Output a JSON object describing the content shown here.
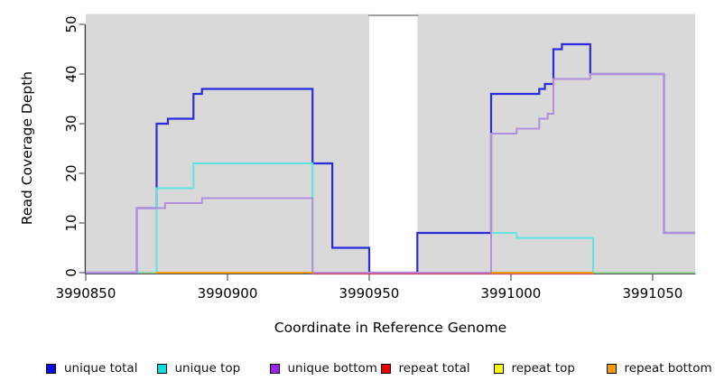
{
  "chart_data": {
    "type": "line",
    "style": "step",
    "title": "",
    "xlabel": "Coordinate in Reference Genome",
    "ylabel": "Read Coverage Depth",
    "xlim": [
      3990850,
      3991065
    ],
    "ylim": [
      0,
      50
    ],
    "xticks": [
      3990850,
      3990900,
      3990950,
      3991000,
      3991050
    ],
    "yticks": [
      0,
      10,
      20,
      30,
      40,
      50
    ],
    "grid": "off",
    "legend_position": "bottom",
    "plot_background": "#d9d9d9",
    "coverage_gap": {
      "x_start": 3990950,
      "x_end": 3990967
    },
    "series": [
      {
        "name": "unique-total",
        "legend_label": "unique total",
        "color": "#0a0aee",
        "line_color": "#2b2bdd",
        "width": 2.2,
        "dy": 0,
        "segments": [
          [
            [
              3990850,
              0
            ],
            [
              3990868,
              13
            ],
            [
              3990875,
              30
            ],
            [
              3990879,
              31
            ],
            [
              3990888,
              36
            ],
            [
              3990891,
              37
            ],
            [
              3990930,
              22
            ],
            [
              3990937,
              5
            ],
            [
              3990950,
              0
            ],
            [
              3990967,
              8
            ],
            [
              3990993,
              36
            ],
            [
              3991010,
              37
            ],
            [
              3991012,
              38
            ],
            [
              3991015,
              45
            ],
            [
              3991018,
              46
            ],
            [
              3991028,
              40
            ],
            [
              3991054,
              8
            ],
            [
              3991065,
              8
            ]
          ]
        ]
      },
      {
        "name": "unique-top",
        "legend_label": "unique top",
        "color": "#00e0e0",
        "line_color": "#5fe3e3",
        "width": 2,
        "dy": 0,
        "segments": [
          [
            [
              3990850,
              0
            ],
            [
              3990875,
              17
            ],
            [
              3990888,
              22
            ],
            [
              3990930,
              0
            ],
            [
              3990993,
              8
            ],
            [
              3991002,
              7
            ],
            [
              3991029,
              0
            ],
            [
              3991065,
              0
            ]
          ]
        ]
      },
      {
        "name": "unique-bottom",
        "legend_label": "unique bottom",
        "color": "#a020f0",
        "line_color": "#b48ede",
        "width": 2,
        "dy": 0,
        "segments": [
          [
            [
              3990850,
              0
            ],
            [
              3990868,
              13
            ],
            [
              3990878,
              14
            ],
            [
              3990891,
              15
            ],
            [
              3990930,
              0
            ],
            [
              3990993,
              28
            ],
            [
              3991002,
              29
            ],
            [
              3991010,
              31
            ],
            [
              3991013,
              32
            ],
            [
              3991015,
              39
            ],
            [
              3991028,
              40
            ],
            [
              3991054,
              8
            ],
            [
              3991065,
              8
            ]
          ]
        ]
      },
      {
        "name": "repeat-total",
        "legend_label": "repeat total",
        "color": "#ee0000",
        "line_color": "#cc4466",
        "width": 1.5,
        "dy": 1.4,
        "segments": [
          [
            [
              3990930,
              0
            ],
            [
              3991029,
              0
            ]
          ]
        ]
      },
      {
        "name": "repeat-top",
        "legend_label": "repeat top",
        "color": "#ffff00",
        "line_color": "#9bd49b",
        "width": 2,
        "dy": 0,
        "segments": [
          [
            [
              3990869,
              0
            ],
            [
              3990875,
              0
            ]
          ],
          [
            [
              3991029,
              0
            ],
            [
              3991065,
              0
            ]
          ]
        ]
      },
      {
        "name": "repeat-bottom",
        "legend_label": "repeat bottom",
        "color": "#f59b00",
        "line_color": "#ff9d00",
        "width": 2,
        "dy": 0,
        "segments": [
          [
            [
              3990875,
              0
            ],
            [
              3990930,
              0
            ]
          ],
          [
            [
              3990993,
              0
            ],
            [
              3991029,
              0
            ]
          ]
        ]
      }
    ]
  }
}
